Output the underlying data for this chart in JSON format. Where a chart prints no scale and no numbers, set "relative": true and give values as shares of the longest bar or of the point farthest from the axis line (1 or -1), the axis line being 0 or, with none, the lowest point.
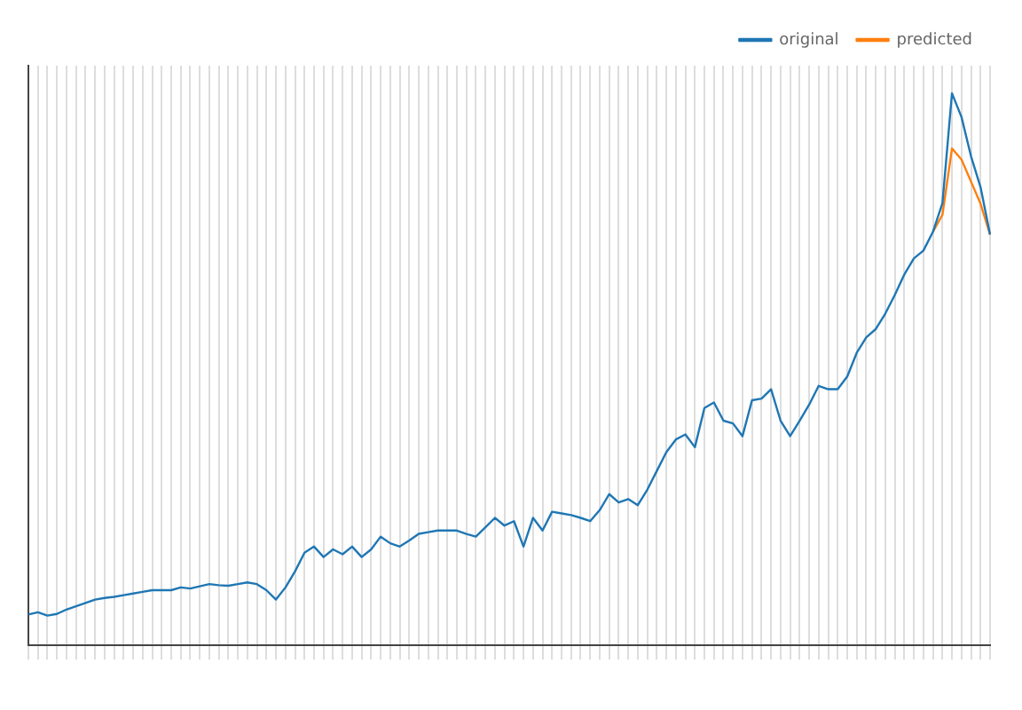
{
  "chart_data": {
    "type": "line",
    "relative": true,
    "grid": true,
    "legend": "top right",
    "marker": "none",
    "line_style": "solid",
    "categories": [
      null,
      null,
      null,
      null,
      null,
      null,
      null,
      null,
      null,
      null,
      null,
      null,
      null,
      null,
      null,
      null,
      null,
      null,
      null,
      null,
      null,
      null,
      null,
      null,
      null,
      null,
      null,
      null,
      null,
      null,
      null,
      null,
      null,
      null,
      null,
      null,
      null,
      null,
      null,
      null,
      null,
      null,
      null,
      null,
      null,
      null,
      null,
      null,
      null,
      null,
      null,
      null,
      null,
      null,
      null,
      null,
      null,
      null,
      null,
      null,
      null,
      null,
      null,
      null,
      null,
      null,
      null,
      null,
      null,
      null,
      null,
      null,
      null,
      null,
      null,
      null,
      null,
      null,
      null,
      null,
      null,
      null,
      null,
      null,
      null,
      null,
      null,
      null,
      null,
      null,
      null,
      null,
      null,
      null,
      null,
      null,
      null,
      null,
      null,
      null,
      null,
      null
    ],
    "series": [
      {
        "name": "original",
        "color": "#1f77b4",
        "values": [
          0.056,
          0.06,
          0.054,
          0.057,
          0.065,
          0.071,
          0.077,
          0.083,
          0.086,
          0.088,
          0.091,
          0.094,
          0.097,
          0.1,
          0.1,
          0.1,
          0.105,
          0.103,
          0.107,
          0.111,
          0.109,
          0.108,
          0.111,
          0.114,
          0.111,
          0.1,
          0.083,
          0.105,
          0.134,
          0.168,
          0.179,
          0.16,
          0.174,
          0.165,
          0.179,
          0.16,
          0.174,
          0.197,
          0.185,
          0.179,
          0.19,
          0.202,
          0.205,
          0.208,
          0.208,
          0.208,
          0.202,
          0.197,
          0.214,
          0.231,
          0.217,
          0.225,
          0.179,
          0.231,
          0.208,
          0.242,
          0.239,
          0.236,
          0.231,
          0.225,
          0.245,
          0.274,
          0.259,
          0.265,
          0.254,
          0.282,
          0.316,
          0.35,
          0.373,
          0.382,
          0.359,
          0.43,
          0.44,
          0.407,
          0.402,
          0.379,
          0.444,
          0.447,
          0.464,
          0.407,
          0.379,
          0.407,
          0.436,
          0.47,
          0.464,
          0.464,
          0.487,
          0.53,
          0.558,
          0.573,
          0.601,
          0.635,
          0.672,
          0.701,
          0.715,
          0.749,
          0.801,
          1,
          0.957,
          0.886,
          0.83,
          0.744
        ]
      },
      {
        "name": "predicted",
        "color": "#ff7f0e",
        "values": [
          null,
          null,
          null,
          null,
          null,
          null,
          null,
          null,
          null,
          null,
          null,
          null,
          null,
          null,
          null,
          null,
          null,
          null,
          null,
          null,
          null,
          null,
          null,
          null,
          null,
          null,
          null,
          null,
          null,
          null,
          null,
          null,
          null,
          null,
          null,
          null,
          null,
          null,
          null,
          null,
          null,
          null,
          null,
          null,
          null,
          null,
          null,
          null,
          null,
          null,
          null,
          null,
          null,
          null,
          null,
          null,
          null,
          null,
          null,
          null,
          null,
          null,
          null,
          null,
          null,
          null,
          null,
          null,
          null,
          null,
          null,
          null,
          null,
          null,
          null,
          null,
          null,
          null,
          null,
          null,
          null,
          null,
          null,
          null,
          null,
          null,
          null,
          null,
          null,
          null,
          null,
          null,
          null,
          null,
          null,
          0.749,
          0.78,
          0.9,
          0.88,
          0.84,
          0.8,
          0.744
        ]
      }
    ]
  }
}
